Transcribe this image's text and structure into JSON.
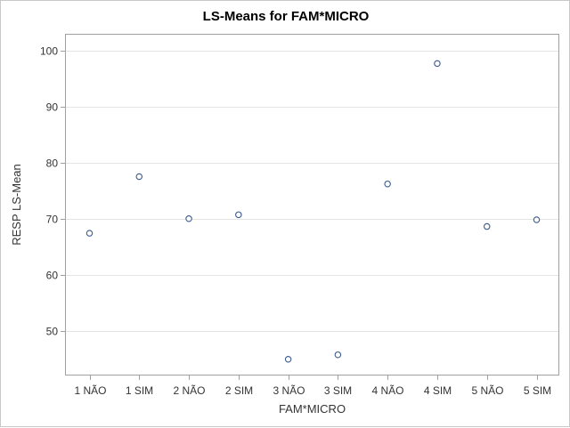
{
  "chart_data": {
    "type": "scatter",
    "title": "LS-Means for FAM*MICRO",
    "xlabel": "FAM*MICRO",
    "ylabel": "RESP LS-Mean",
    "categories": [
      "1 NÃO",
      "1 SIM",
      "2 NÃO",
      "2 SIM",
      "3 NÃO",
      "3 SIM",
      "4 NÃO",
      "4 SIM",
      "5 NÃO",
      "5 SIM"
    ],
    "series": [
      {
        "values": [
          67.4,
          77.5,
          70.0,
          70.7,
          44.9,
          45.7,
          76.2,
          97.7,
          68.6,
          69.8
        ]
      }
    ],
    "yticks": [
      50,
      60,
      70,
      80,
      90,
      100
    ],
    "ylim": [
      42,
      103
    ],
    "grid": true,
    "legend": "none",
    "colors": {
      "marker_stroke": "#3a5a8c",
      "marker_fill": "#ffffff",
      "grid": "#e4e4e4",
      "axis": "#a0a0a0"
    }
  }
}
